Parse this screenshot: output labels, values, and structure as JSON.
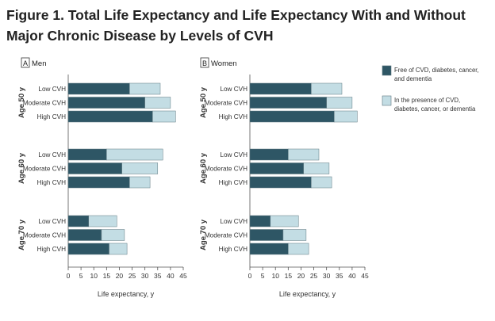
{
  "figure": {
    "title_line1": "Figure 1.  Total Life Expectancy and Life Expectancy With and Without",
    "title_line2": "Major Chronic Disease by Levels of CVH"
  },
  "legend": {
    "items": [
      {
        "label": [
          "Free of CVD, diabetes, cancer,",
          "and dementia"
        ],
        "color": "#2e5665"
      },
      {
        "label": [
          "In the presence of CVD,",
          "diabetes, cancer, or dementia"
        ],
        "color": "#c3dde4"
      }
    ]
  },
  "colors": {
    "free": "#2e5665",
    "disease": "#c3dde4",
    "bar_stroke": "#5f7880",
    "axis": "#555555"
  },
  "chart_data": [
    {
      "type": "bar",
      "orientation": "horizontal",
      "stacked": true,
      "panel_letter": "A",
      "panel_title": "Men",
      "xlabel": "Life expectancy, y",
      "xlim": [
        0,
        45
      ],
      "xticks": [
        0,
        5,
        10,
        15,
        20,
        25,
        30,
        35,
        40,
        45
      ],
      "groups": [
        {
          "label": "Age 50 y",
          "categories": [
            "Low CVH",
            "Moderate CVH",
            "High CVH"
          ],
          "free": [
            24,
            30,
            33
          ],
          "disease": [
            12,
            10,
            9
          ]
        },
        {
          "label": "Age 60 y",
          "categories": [
            "Low CVH",
            "Moderate CVH",
            "High CVH"
          ],
          "free": [
            15,
            21,
            24
          ],
          "disease": [
            22,
            14,
            8
          ]
        },
        {
          "label": "Age 70 y",
          "categories": [
            "Low CVH",
            "Moderate CVH",
            "High CVH"
          ],
          "free": [
            8,
            13,
            16
          ],
          "disease": [
            11,
            9,
            7
          ]
        }
      ]
    },
    {
      "type": "bar",
      "orientation": "horizontal",
      "stacked": true,
      "panel_letter": "B",
      "panel_title": "Women",
      "xlabel": "Life expectancy, y",
      "xlim": [
        0,
        45
      ],
      "xticks": [
        0,
        5,
        10,
        15,
        20,
        25,
        30,
        35,
        40,
        45
      ],
      "groups": [
        {
          "label": "Age 50 y",
          "categories": [
            "Low CVH",
            "Moderate CVH",
            "High CVH"
          ],
          "free": [
            24,
            30,
            33
          ],
          "disease": [
            12,
            10,
            9
          ]
        },
        {
          "label": "Age 60 y",
          "categories": [
            "Low CVH",
            "Moderate CVH",
            "High CVH"
          ],
          "free": [
            15,
            21,
            24
          ],
          "disease": [
            12,
            10,
            8
          ]
        },
        {
          "label": "Age 70 y",
          "categories": [
            "Low CVH",
            "Moderate CVH",
            "High CVH"
          ],
          "free": [
            8,
            13,
            15
          ],
          "disease": [
            11,
            9,
            8
          ]
        }
      ]
    }
  ]
}
